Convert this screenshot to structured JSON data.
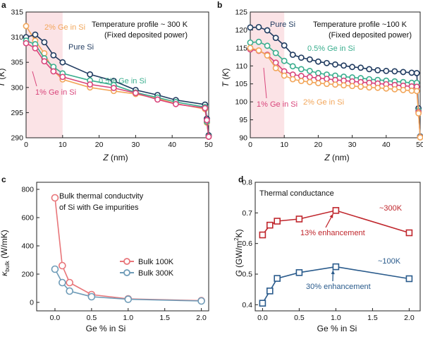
{
  "chart_data": [
    {
      "panel": "a",
      "type": "line",
      "annotation": [
        "Temperature profile ~ 300 K",
        "(Fixed deposited power)"
      ],
      "xlabel": "Z (nm)",
      "ylabel": "T (K)",
      "xlim": [
        0,
        50
      ],
      "ylim": [
        290,
        315
      ],
      "xticks": [
        0,
        10,
        20,
        30,
        40,
        50
      ],
      "yticks": [
        290,
        295,
        300,
        305,
        310,
        315
      ],
      "shaded_region_x": [
        0,
        10
      ],
      "x": [
        0,
        2.5,
        5,
        7.5,
        10,
        17.5,
        24,
        30,
        36,
        41,
        49,
        49.5,
        50
      ],
      "series": [
        {
          "name": "2% Ge in Si",
          "color": "#F2A65A",
          "values": [
            312.2,
            309.3,
            306.8,
            303.3,
            301.6,
            300.0,
            299.3,
            298.7,
            297.8,
            296.8,
            295.7,
            293.0,
            290.2
          ]
        },
        {
          "name": "Pure Si",
          "color": "#1F3A5F",
          "values": [
            310.0,
            310.5,
            309.0,
            306.4,
            305.0,
            302.6,
            301.3,
            299.5,
            298.5,
            297.5,
            296.6,
            293.8,
            290.5
          ]
        },
        {
          "name": "0.5% Ge in Si",
          "color": "#3AAE8E",
          "values": [
            309.3,
            308.6,
            305.8,
            304.1,
            302.8,
            301.4,
            300.5,
            299.0,
            298.0,
            297.1,
            296.1,
            293.2,
            290.3
          ]
        },
        {
          "name": "1% Ge in Si",
          "color": "#D9457B",
          "values": [
            308.8,
            307.8,
            305.2,
            303.2,
            302.1,
            300.6,
            299.9,
            298.9,
            297.6,
            296.7,
            295.9,
            293.5,
            290.2
          ]
        }
      ]
    },
    {
      "panel": "b",
      "type": "line",
      "annotation": [
        "Temperature profile ~100 K",
        "(Fixed deposited power)"
      ],
      "xlabel": "Z (nm)",
      "ylabel": "T (K)",
      "xlim": [
        0,
        50
      ],
      "ylim": [
        90,
        125
      ],
      "xticks": [
        0,
        10,
        20,
        30,
        40,
        50
      ],
      "yticks": [
        90,
        95,
        100,
        105,
        110,
        115,
        120,
        125
      ],
      "shaded_region_x": [
        0,
        10
      ],
      "x": [
        0,
        2.5,
        5,
        7.5,
        10,
        12.5,
        15,
        17.5,
        20,
        22.5,
        25,
        27.5,
        30,
        32.5,
        35,
        37.5,
        40,
        42.5,
        45,
        47.5,
        49,
        49.5,
        50
      ],
      "series": [
        {
          "name": "Pure Si",
          "color": "#1F3A5F",
          "values": [
            120.7,
            120.8,
            119.9,
            117.8,
            115.7,
            113.1,
            112.3,
            111.8,
            111.2,
            110.8,
            110.4,
            110.1,
            109.7,
            109.5,
            109.1,
            108.8,
            108.6,
            108.5,
            108.3,
            108.1,
            108.0,
            98.2,
            90.4
          ]
        },
        {
          "name": "0.5% Ge in Si",
          "color": "#3AAE8E",
          "values": [
            116.5,
            116.7,
            115.6,
            113.6,
            111.4,
            109.9,
            109.1,
            108.6,
            108.0,
            107.6,
            107.3,
            107.0,
            106.8,
            106.6,
            106.3,
            106.1,
            105.9,
            105.7,
            105.5,
            105.3,
            105.3,
            97.6,
            90.3
          ]
        },
        {
          "name": "1% Ge in Si",
          "color": "#D9457B",
          "values": [
            114.6,
            114.2,
            113.1,
            110.9,
            108.5,
            107.6,
            107.2,
            106.9,
            106.6,
            106.4,
            106.1,
            105.9,
            105.7,
            105.5,
            105.3,
            105.1,
            104.9,
            104.7,
            104.5,
            104.3,
            104.2,
            97.2,
            90.2
          ]
        },
        {
          "name": "2% Ge in Si",
          "color": "#F2A65A",
          "values": [
            115.0,
            114.3,
            112.9,
            109.4,
            107.3,
            106.3,
            105.8,
            105.5,
            105.2,
            105.0,
            104.8,
            104.6,
            104.4,
            104.2,
            104.0,
            103.9,
            103.7,
            103.5,
            103.3,
            103.1,
            103.0,
            96.8,
            90.1
          ]
        }
      ]
    },
    {
      "panel": "c",
      "type": "line",
      "annotation": [
        "Bulk thermal conductvity",
        "of Si with Ge impurities"
      ],
      "xlabel": "Ge % in Si",
      "ylabel": "κbulk (W/mK)",
      "ylabel_main": "κ",
      "ylabel_sub": "bulk",
      "ylabel_unit": " (W/mK)",
      "xlim": [
        -0.25,
        2.1
      ],
      "ylim": [
        -60,
        850
      ],
      "xticks": [
        0.0,
        0.5,
        1.0,
        1.5,
        2.0
      ],
      "xtick_labels": [
        "0.0",
        "0.5",
        "1.0",
        "1.5",
        "2.0"
      ],
      "yticks": [
        0,
        200,
        400,
        600,
        800
      ],
      "x": [
        0,
        0.1,
        0.2,
        0.5,
        1.0,
        2.0
      ],
      "series": [
        {
          "name": "Bulk 100K",
          "color": "#E8767A",
          "values": [
            740,
            260,
            140,
            55,
            25,
            12
          ]
        },
        {
          "name": "Bulk 300K",
          "color": "#6F9CB8",
          "values": [
            235,
            140,
            80,
            40,
            22,
            10
          ]
        }
      ]
    },
    {
      "panel": "d",
      "type": "line",
      "annotation": "Thermal conductance",
      "xlabel": "Ge % in Si",
      "ylabel": "G (GW/m²K)",
      "ylabel_main": "G",
      "ylabel_unit": " (GW/m",
      "ylabel_sup": "2",
      "ylabel_unit_end": "K)",
      "xlim": [
        -0.1,
        2.15
      ],
      "ylim": [
        0.38,
        0.8
      ],
      "xticks": [
        0.0,
        0.5,
        1.0,
        1.5,
        2.0
      ],
      "xtick_labels": [
        "0.0",
        "0.5",
        "1.0",
        "1.5",
        "2.0"
      ],
      "yticks": [
        0.4,
        0.5,
        0.6,
        0.7,
        0.8
      ],
      "ytick_labels": [
        "0.4",
        "0.5",
        "0.6",
        "0.7",
        "0.8"
      ],
      "x": [
        0,
        0.1,
        0.2,
        0.5,
        1.0,
        2.0
      ],
      "series": [
        {
          "label": "~300K",
          "color": "#C0272D",
          "values": [
            0.628,
            0.66,
            0.673,
            0.68,
            0.708,
            0.635
          ]
        },
        {
          "label": "~100K",
          "color": "#2A5B8C",
          "values": [
            0.405,
            0.445,
            0.486,
            0.505,
            0.524,
            0.485
          ]
        }
      ],
      "enhancement_labels": [
        "13% enhancement",
        "30% enhancement"
      ]
    }
  ]
}
